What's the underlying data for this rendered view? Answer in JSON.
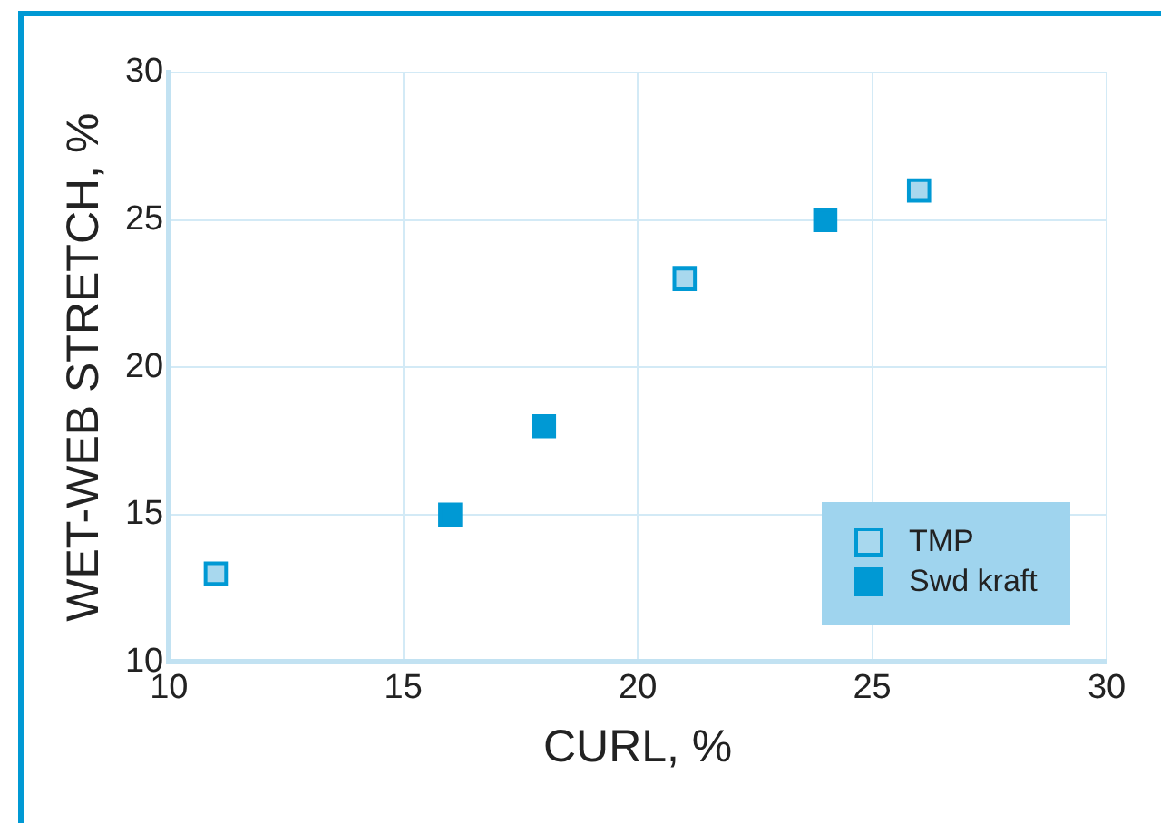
{
  "chart_data": {
    "type": "scatter",
    "xlabel": "CURL, %",
    "ylabel": "WET-WEB STRETCH, %",
    "series": [
      {
        "name": "TMP",
        "color": "#a8d8ee",
        "x": [
          11,
          21,
          26
        ],
        "values": [
          13,
          23,
          26
        ]
      },
      {
        "name": "Swd kraft",
        "color": "#0099d4",
        "x": [
          16,
          18,
          24
        ],
        "values": [
          15,
          18,
          25
        ]
      }
    ],
    "xlim": [
      10,
      30
    ],
    "xticks": [
      10,
      15,
      20,
      25,
      30
    ],
    "ylim": [
      10,
      30
    ],
    "yticks": [
      10,
      15,
      20,
      25,
      30
    ],
    "grid": true,
    "legend": "bottom right",
    "marker": "square"
  }
}
